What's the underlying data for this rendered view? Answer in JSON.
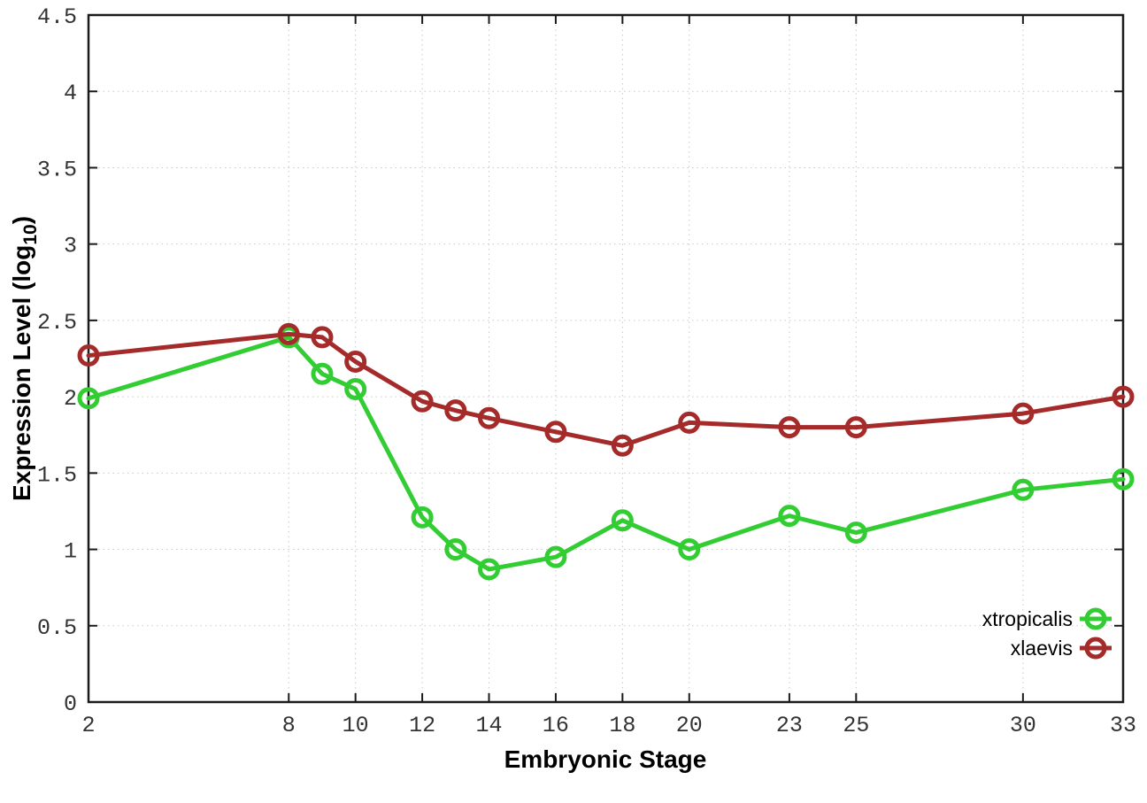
{
  "chart_data": {
    "type": "line",
    "title": "",
    "xlabel": "Embryonic Stage",
    "ylabel": "Expression Level (log10)",
    "ylabel_subscript": "10",
    "x": [
      2,
      8,
      9,
      10,
      12,
      13,
      14,
      16,
      18,
      20,
      23,
      25,
      30,
      33
    ],
    "series": [
      {
        "name": "xtropicalis",
        "color": "#32cd32",
        "values": [
          1.99,
          2.39,
          2.15,
          2.05,
          1.21,
          1.0,
          0.87,
          0.95,
          1.19,
          1.0,
          1.22,
          1.11,
          1.39,
          1.46
        ]
      },
      {
        "name": "xlaevis",
        "color": "#a52a2a",
        "values": [
          2.27,
          2.41,
          2.39,
          2.23,
          1.97,
          1.91,
          1.86,
          1.77,
          1.68,
          1.83,
          1.8,
          1.8,
          1.89,
          2.0
        ]
      }
    ],
    "xticks": [
      2,
      8,
      10,
      12,
      14,
      16,
      18,
      20,
      23,
      25,
      30,
      33
    ],
    "yticks": [
      0,
      0.5,
      1,
      1.5,
      2,
      2.5,
      3,
      3.5,
      4,
      4.5
    ],
    "xlim": [
      2,
      33
    ],
    "ylim": [
      0,
      4.5
    ],
    "grid": true,
    "grid_color": "#c9c9c9",
    "border_color": "#1a1a1a",
    "marker": "open-circle",
    "legend_position": "bottom-right"
  }
}
